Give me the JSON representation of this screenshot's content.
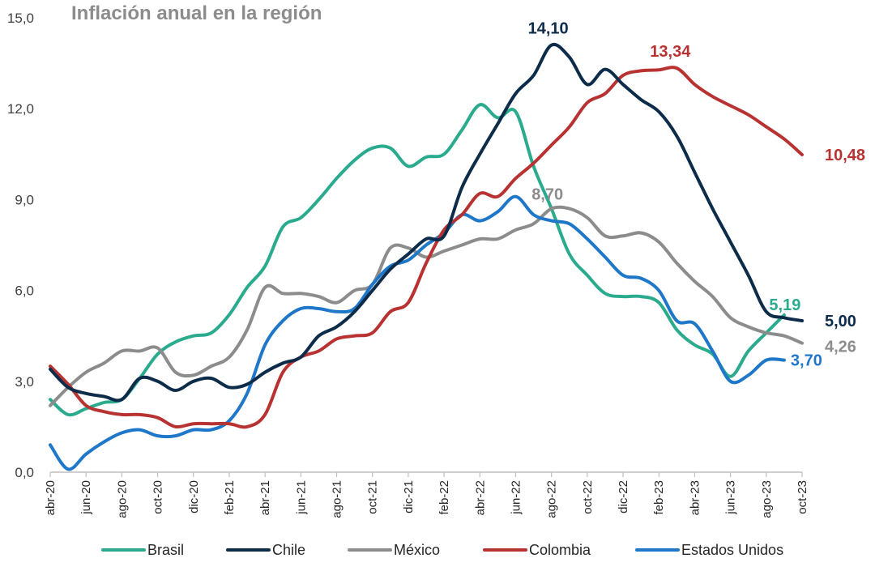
{
  "chart_data": {
    "type": "line",
    "title": "Inflación anual en la región",
    "xlabel": "",
    "ylabel": "",
    "ylim": [
      0,
      15
    ],
    "yticks": [
      "0,0",
      "3,0",
      "6,0",
      "9,0",
      "12,0",
      "15,0"
    ],
    "ytick_values": [
      0,
      3,
      6,
      9,
      12,
      15
    ],
    "x": [
      "abr-20",
      "may-20",
      "jun-20",
      "jul-20",
      "ago-20",
      "sep-20",
      "oct-20",
      "nov-20",
      "dic-20",
      "ene-21",
      "feb-21",
      "mar-21",
      "abr-21",
      "may-21",
      "jun-21",
      "jul-21",
      "ago-21",
      "sep-21",
      "oct-21",
      "nov-21",
      "dic-21",
      "ene-22",
      "feb-22",
      "mar-22",
      "abr-22",
      "may-22",
      "jun-22",
      "jul-22",
      "ago-22",
      "sep-22",
      "oct-22",
      "nov-22",
      "dic-22",
      "ene-23",
      "feb-23",
      "mar-23",
      "abr-23",
      "may-23",
      "jun-23",
      "jul-23",
      "ago-23",
      "sep-23",
      "oct-23"
    ],
    "xtick_labels": [
      "abr-20",
      "jun-20",
      "ago-20",
      "oct-20",
      "dic-20",
      "feb-21",
      "abr-21",
      "jun-21",
      "ago-21",
      "oct-21",
      "dic-21",
      "feb-22",
      "abr-22",
      "jun-22",
      "ago-22",
      "oct-22",
      "dic-22",
      "feb-23",
      "abr-23",
      "jun-23",
      "ago-23",
      "oct-23"
    ],
    "grid": false,
    "legend_position": "bottom",
    "series": [
      {
        "name": "Brasil",
        "color": "#2bab8e",
        "values": [
          2.4,
          1.9,
          2.1,
          2.3,
          2.4,
          3.1,
          3.9,
          4.3,
          4.5,
          4.6,
          5.2,
          6.1,
          6.8,
          8.1,
          8.4,
          9.0,
          9.7,
          10.3,
          10.7,
          10.7,
          10.1,
          10.4,
          10.5,
          11.3,
          12.13,
          11.7,
          11.9,
          10.1,
          8.7,
          7.2,
          6.5,
          5.9,
          5.8,
          5.8,
          5.6,
          4.7,
          4.2,
          3.9,
          3.16,
          4.0,
          4.6,
          5.19,
          null
        ],
        "label_value": "5,19",
        "label_index": 41
      },
      {
        "name": "Chile",
        "color": "#0d2c4a",
        "values": [
          3.4,
          2.8,
          2.6,
          2.5,
          2.4,
          3.1,
          3.0,
          2.7,
          3.0,
          3.1,
          2.8,
          2.9,
          3.3,
          3.6,
          3.8,
          4.5,
          4.8,
          5.3,
          6.0,
          6.7,
          7.2,
          7.7,
          7.8,
          9.4,
          10.5,
          11.5,
          12.5,
          13.1,
          14.1,
          13.7,
          12.8,
          13.3,
          12.8,
          12.3,
          11.9,
          11.1,
          9.9,
          8.7,
          7.6,
          6.5,
          5.3,
          5.1,
          5.0
        ],
        "label_value": "14,10",
        "label_index": 28,
        "end_label_value": "5,00"
      },
      {
        "name": "México",
        "color": "#8c8c8c",
        "values": [
          2.2,
          2.8,
          3.3,
          3.6,
          4.0,
          4.0,
          4.1,
          3.3,
          3.2,
          3.5,
          3.8,
          4.7,
          6.1,
          5.9,
          5.9,
          5.8,
          5.6,
          6.0,
          6.2,
          7.4,
          7.4,
          7.1,
          7.3,
          7.5,
          7.7,
          7.7,
          8.0,
          8.2,
          8.7,
          8.7,
          8.4,
          7.8,
          7.8,
          7.9,
          7.6,
          6.9,
          6.3,
          5.8,
          5.1,
          4.8,
          4.6,
          4.5,
          4.26
        ],
        "label_value": "8,70",
        "label_index": 28,
        "end_label_value": "4,26"
      },
      {
        "name": "Colombia",
        "color": "#b83232",
        "values": [
          3.5,
          2.9,
          2.2,
          2.0,
          1.9,
          1.9,
          1.8,
          1.5,
          1.6,
          1.6,
          1.6,
          1.5,
          1.9,
          3.3,
          3.8,
          4.0,
          4.4,
          4.5,
          4.6,
          5.3,
          5.6,
          6.9,
          8.0,
          8.5,
          9.2,
          9.1,
          9.7,
          10.2,
          10.8,
          11.4,
          12.2,
          12.5,
          13.1,
          13.25,
          13.28,
          13.34,
          12.8,
          12.4,
          12.1,
          11.8,
          11.4,
          11.0,
          10.48
        ],
        "label_value": "13,34",
        "label_index": 35,
        "end_label_value": "10,48"
      },
      {
        "name": "Estados Unidos",
        "color": "#1f77c9",
        "values": [
          0.9,
          0.1,
          0.6,
          1.0,
          1.3,
          1.4,
          1.2,
          1.2,
          1.4,
          1.4,
          1.7,
          2.6,
          4.2,
          5.0,
          5.4,
          5.4,
          5.3,
          5.4,
          6.2,
          6.8,
          7.0,
          7.5,
          7.9,
          8.5,
          8.3,
          8.6,
          9.1,
          8.5,
          8.3,
          8.2,
          7.7,
          7.1,
          6.5,
          6.4,
          6.0,
          5.0,
          4.9,
          4.0,
          3.0,
          3.2,
          3.7,
          3.7,
          null
        ],
        "label_value": "3,70",
        "label_index": 41
      }
    ]
  }
}
